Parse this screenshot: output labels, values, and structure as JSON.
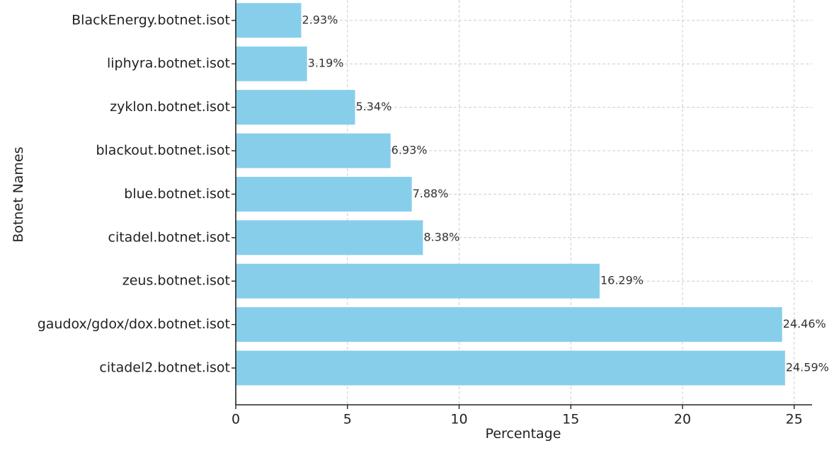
{
  "chart_data": {
    "type": "bar",
    "orientation": "horizontal",
    "categories": [
      "citadel2.botnet.isot",
      "gaudox/gdox/dox.botnet.isot",
      "zeus.botnet.isot",
      "citadel.botnet.isot",
      "blue.botnet.isot",
      "blackout.botnet.isot",
      "zyklon.botnet.isot",
      "liphyra.botnet.isot",
      "BlackEnergy.botnet.isot"
    ],
    "values": [
      24.59,
      24.46,
      16.29,
      8.38,
      7.88,
      6.93,
      5.34,
      3.19,
      2.93
    ],
    "data_labels": [
      "24.59%",
      "24.46%",
      "16.29%",
      "8.38%",
      "7.88%",
      "6.93%",
      "5.34%",
      "3.19%",
      "2.93%"
    ],
    "title": "",
    "xlabel": "Percentage",
    "ylabel": "Botnet Names",
    "xlim": [
      0,
      25.8
    ],
    "xticks": [
      0,
      5,
      10,
      15,
      20,
      25
    ],
    "xtick_labels": [
      "0",
      "5",
      "10",
      "15",
      "20",
      "25"
    ],
    "grid": true,
    "bar_color": "#87ceeb"
  }
}
